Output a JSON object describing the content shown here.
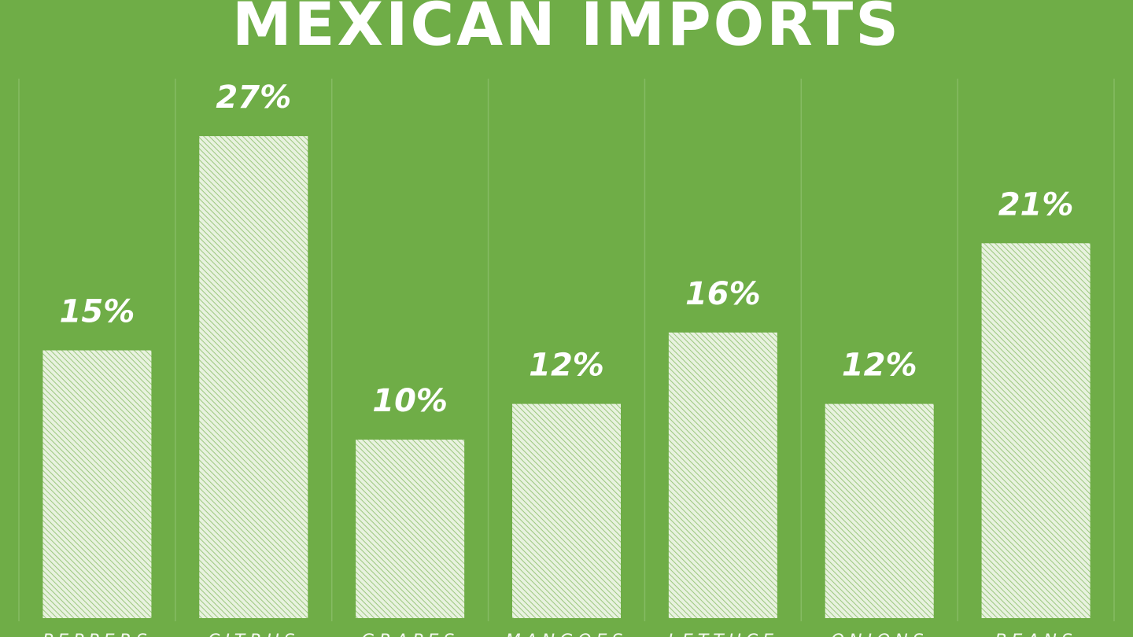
{
  "chart_data": {
    "type": "bar",
    "title": "MEXICAN IMPORTS",
    "categories": [
      "PEPPERS",
      "CITRUS",
      "GRAPES",
      "MANGOES",
      "LETTUCE",
      "ONIONS",
      "BEANS"
    ],
    "values": [
      15,
      27,
      10,
      12,
      16,
      12,
      21
    ],
    "value_labels": [
      "15%",
      "27%",
      "10%",
      "12%",
      "16%",
      "12%",
      "21%"
    ],
    "unit": "%",
    "ylim": [
      0,
      30
    ],
    "grid": "vertical",
    "legend": "none"
  },
  "colors": {
    "background": "#6fad47",
    "bar_fill": "#e8f2df",
    "bar_hatch": "#9cc77f",
    "text": "#ffffff"
  }
}
